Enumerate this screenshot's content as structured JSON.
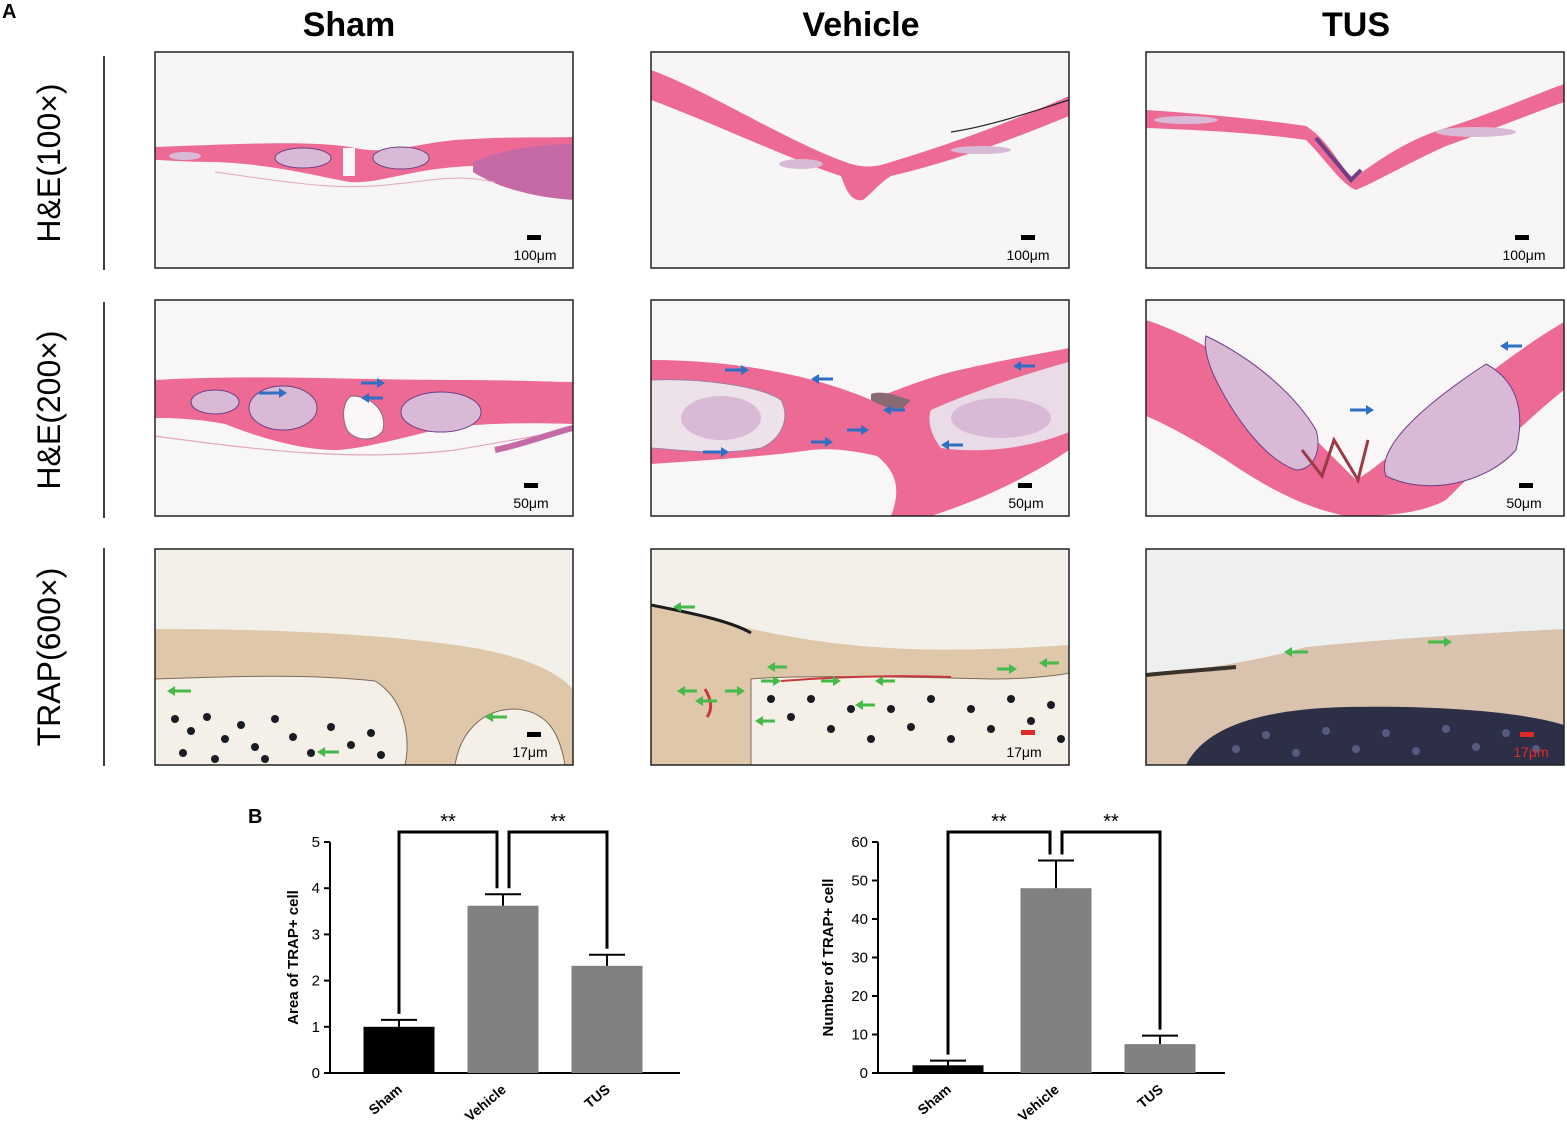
{
  "panel_a": {
    "label": "A",
    "columns": [
      "Sham",
      "Vehicle",
      "TUS"
    ],
    "rows": [
      {
        "label": "H&E(100×)",
        "scale_bars": [
          "100μm",
          "100μm",
          "100μm"
        ]
      },
      {
        "label": "H&E(200×)",
        "scale_bars": [
          "50μm",
          "50μm",
          "50μm"
        ]
      },
      {
        "label": "TRAP(600×)",
        "scale_bars": [
          "17μm",
          "17μm",
          "17μm"
        ]
      }
    ],
    "colors": {
      "tissue_pink": "#ec6a94",
      "marrow": "#d9bad6",
      "marrow_cells": "#6e3f86",
      "trap_bone": "#dfc7aa",
      "trap_cells": "#1b1b24",
      "blue_arrow": "#2f6fc4",
      "green_arrow": "#46b94a",
      "red_arrow": "#e02a2a"
    }
  },
  "panel_b": {
    "label": "B",
    "significance": [
      "**",
      "**"
    ]
  },
  "chart_data": [
    {
      "type": "bar",
      "categories": [
        "Sham",
        "Vehicle",
        "TUS"
      ],
      "values": [
        1.0,
        3.62,
        2.32
      ],
      "errors": [
        0.15,
        0.25,
        0.24
      ],
      "ylabel": "Area of TRAP+ cell",
      "ylim": [
        0,
        5
      ],
      "yticks": [
        "0",
        "1",
        "2",
        "3",
        "4",
        "5"
      ],
      "bar_colors": [
        "#000000",
        "#808080",
        "#808080"
      ],
      "brackets": [
        "**",
        "**"
      ]
    },
    {
      "type": "bar",
      "categories": [
        "Sham",
        "Vehicle",
        "TUS"
      ],
      "values": [
        2.0,
        48.0,
        7.5
      ],
      "errors": [
        1.2,
        7.2,
        2.2
      ],
      "ylabel": "Number of TRAP+ cell",
      "ylim": [
        0,
        60
      ],
      "yticks": [
        "0",
        "10",
        "20",
        "30",
        "40",
        "50",
        "60"
      ],
      "bar_colors": [
        "#000000",
        "#808080",
        "#808080"
      ],
      "brackets": [
        "**",
        "**"
      ]
    }
  ]
}
